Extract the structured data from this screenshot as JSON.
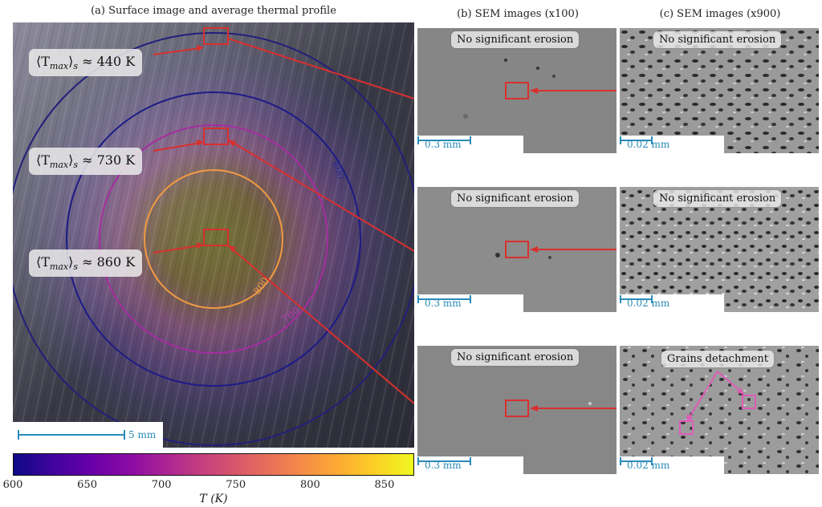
{
  "titles": {
    "a": "(a) Surface image and average thermal profile",
    "b": "(b) SEM images (x100)",
    "c": "(c) SEM images (x900)"
  },
  "temp_labels": [
    {
      "prefix": "⟨T",
      "sub1": "max",
      "suffix": "⟩",
      "sub2": "s",
      "value": " ≈ 440 K"
    },
    {
      "prefix": "⟨T",
      "sub1": "max",
      "suffix": "⟩",
      "sub2": "s",
      "value": " ≈ 730 K"
    },
    {
      "prefix": "⟨T",
      "sub1": "max",
      "suffix": "⟩",
      "sub2": "s",
      "value": " ≈ 860 K"
    }
  ],
  "contour_labels": {
    "c600": "600",
    "c700": "700",
    "c800": "800"
  },
  "scalebars": {
    "main": "5 mm",
    "x100": "0.3 mm",
    "x900": "0.02 mm"
  },
  "sem_labels": {
    "b1": "No significant erosion",
    "b2": "No significant erosion",
    "b3": "No significant erosion",
    "c1": "No significant erosion",
    "c2": "No significant erosion",
    "c3": "Grains detachment"
  },
  "colorbar": {
    "ticks": [
      "600",
      "650",
      "700",
      "750",
      "800",
      "850"
    ],
    "tick_values": [
      600,
      650,
      700,
      750,
      800,
      850
    ],
    "range": [
      600,
      870
    ],
    "xlabel": "T (K)",
    "colormap": "plasma"
  },
  "colors": {
    "arrow": "#d8302e",
    "pink": "#e05bb8",
    "scale": "#2a8bb8"
  }
}
